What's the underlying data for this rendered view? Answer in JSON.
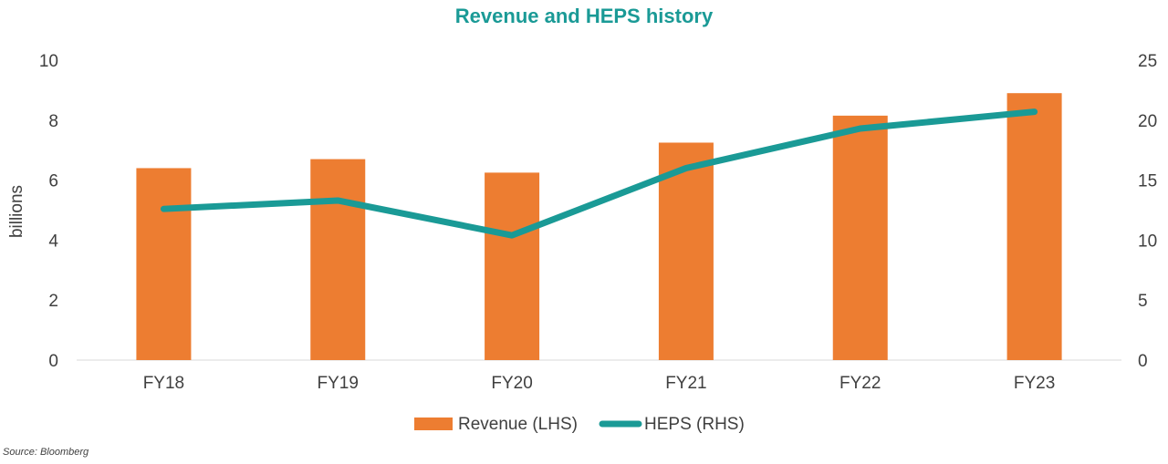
{
  "chart_data": {
    "type": "bar+line",
    "title": "Revenue and HEPS history",
    "categories": [
      "FY18",
      "FY19",
      "FY20",
      "FY21",
      "FY22",
      "FY23"
    ],
    "ylabel_left": "billions",
    "ylim_left": [
      0,
      10
    ],
    "yticks_left": [
      0,
      2,
      4,
      6,
      8,
      10
    ],
    "ylim_right": [
      0,
      25
    ],
    "yticks_right": [
      0,
      5,
      10,
      15,
      20,
      25
    ],
    "series": [
      {
        "name": "Revenue (LHS)",
        "type": "bar",
        "axis": "left",
        "color": "#ED7D31",
        "values": [
          6.4,
          6.7,
          6.25,
          7.25,
          8.15,
          8.9
        ]
      },
      {
        "name": "HEPS (RHS)",
        "type": "line",
        "axis": "right",
        "color": "#1A9A96",
        "values": [
          12.6,
          13.3,
          10.4,
          16.0,
          19.3,
          20.7
        ]
      }
    ],
    "legend_position": "bottom",
    "title_color": "#1A9A96"
  },
  "source": "Source: Bloomberg"
}
